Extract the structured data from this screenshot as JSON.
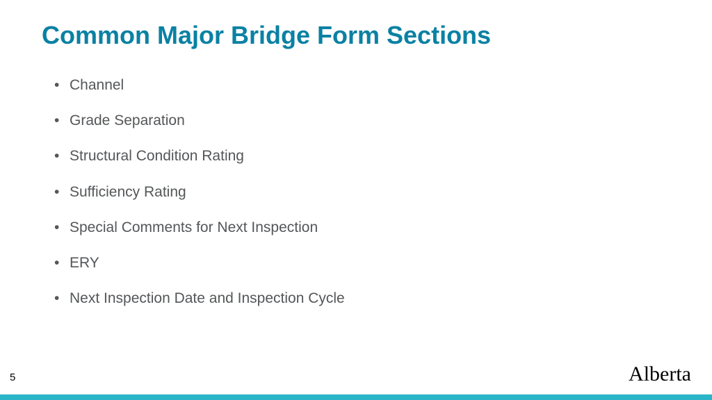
{
  "slide": {
    "title": "Common Major Bridge Form Sections",
    "title_color": "#0a81a3",
    "title_fontsize": 36,
    "title_fontweight": "bold",
    "bullets": [
      "Channel",
      "Grade Separation",
      "Structural Condition Rating",
      "Sufficiency Rating",
      "Special Comments for Next Inspection",
      "ERY",
      "Next Inspection Date and Inspection Cycle"
    ],
    "bullet_color": "#545658",
    "bullet_fontsize": 21,
    "page_number": "5",
    "logo_text": "Alberta",
    "accent_bar_color": "#2bb5c9",
    "background_color": "#ffffff"
  }
}
